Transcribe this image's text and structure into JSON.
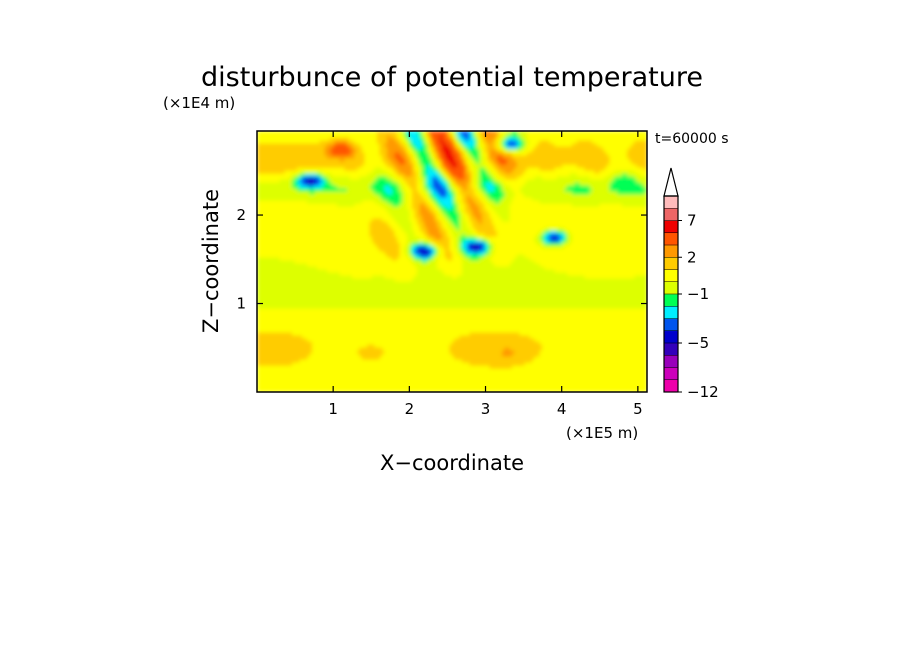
{
  "chart_data": {
    "type": "heatmap",
    "title": "disturbunce of potential temperature",
    "subtitle": "t=60000 s",
    "xlabel": "X−coordinate",
    "ylabel": "Z−coordinate",
    "x_unit": "(×1E5 m)",
    "y_unit": "(×1E4 m)",
    "xlim": [
      0,
      5.12
    ],
    "ylim": [
      0,
      2.95
    ],
    "x_ticks": [
      1,
      2,
      3,
      4,
      5
    ],
    "x_tick_labels": [
      "1",
      "2",
      "3",
      "4",
      "5"
    ],
    "y_ticks": [
      1,
      2
    ],
    "y_tick_labels": [
      "1",
      "2"
    ],
    "colorbar": {
      "levels": [
        -12,
        -10,
        -8,
        -6,
        -5,
        -4,
        -3,
        -2,
        -1,
        0,
        1,
        2,
        3,
        5,
        7,
        9,
        11
      ],
      "colors": [
        "#ee00aa",
        "#cc00bb",
        "#9900bb",
        "#3300bb",
        "#0000cc",
        "#0055ee",
        "#00eeff",
        "#00ff55",
        "#ddff00",
        "#ffff00",
        "#ffcc00",
        "#ff9900",
        "#ff5500",
        "#ee0000",
        "#ee6666",
        "#ffbbbb"
      ],
      "tick_values": [
        7,
        2,
        -1,
        -5,
        -12
      ],
      "tick_labels": [
        "7",
        "2",
        "−1",
        "−5",
        "−12"
      ],
      "extend": "max"
    },
    "features": [
      {
        "x": 0.7,
        "z": 2.4,
        "value": -5
      },
      {
        "x": 3.3,
        "z": 2.8,
        "value": -5
      },
      {
        "x": 1.1,
        "z": 2.75,
        "value": 3
      },
      {
        "x": 2.2,
        "z": 1.6,
        "value": -5
      },
      {
        "x": 2.9,
        "z": 1.65,
        "value": -5
      },
      {
        "x": 3.9,
        "z": 1.75,
        "value": -5
      },
      {
        "x": 4.8,
        "z": 2.4,
        "value": -1
      },
      {
        "x": 1.5,
        "z": 0.45,
        "value": 1
      },
      {
        "x": 3.3,
        "z": 0.45,
        "value": 1
      }
    ]
  }
}
